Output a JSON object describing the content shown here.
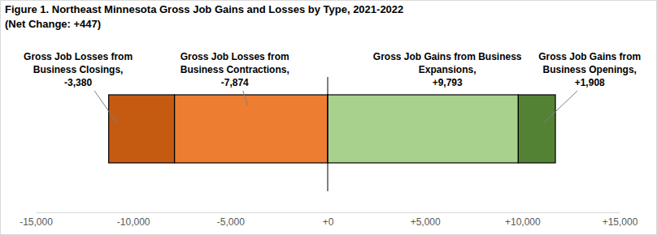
{
  "chart_data": {
    "type": "bar",
    "orientation": "horizontal",
    "stacked": true,
    "data_labels": true,
    "grid": false,
    "title": "Figure 1. Northeast Minnesota Gross Job Gains and Losses by Type, 2021-2022",
    "subtitle": "(Net Change: +447)",
    "categories": [
      null
    ],
    "series": [
      {
        "name": "Gross Job Losses from Business Contractions,",
        "color": "#ed7d31",
        "values": [
          -7874
        ],
        "value_labels": [
          "-7,874"
        ]
      },
      {
        "name": "Gross Job Losses from Business Closings,",
        "color": "#c55a11",
        "values": [
          -3380
        ],
        "value_labels": [
          "-3,380"
        ]
      },
      {
        "name": "Gross Job Gains from Business Expansions,",
        "color": "#a9d18e",
        "values": [
          9793
        ],
        "value_labels": [
          "+9,793"
        ]
      },
      {
        "name": "Gross Job Gains from Business Openings,",
        "color": "#548235",
        "values": [
          1908
        ],
        "value_labels": [
          "+1,908"
        ]
      }
    ],
    "xlim": [
      -15000,
      15000
    ],
    "xticks": [
      {
        "value": -15000,
        "label": "-15,000"
      },
      {
        "value": -10000,
        "label": "-10,000"
      },
      {
        "value": -5000,
        "label": "-5,000"
      },
      {
        "value": 0,
        "label": "+0"
      },
      {
        "value": 5000,
        "label": "+5,000"
      },
      {
        "value": 10000,
        "label": "+10,000"
      },
      {
        "value": 15000,
        "label": "+15,000"
      }
    ],
    "tick_labels": "x"
  }
}
